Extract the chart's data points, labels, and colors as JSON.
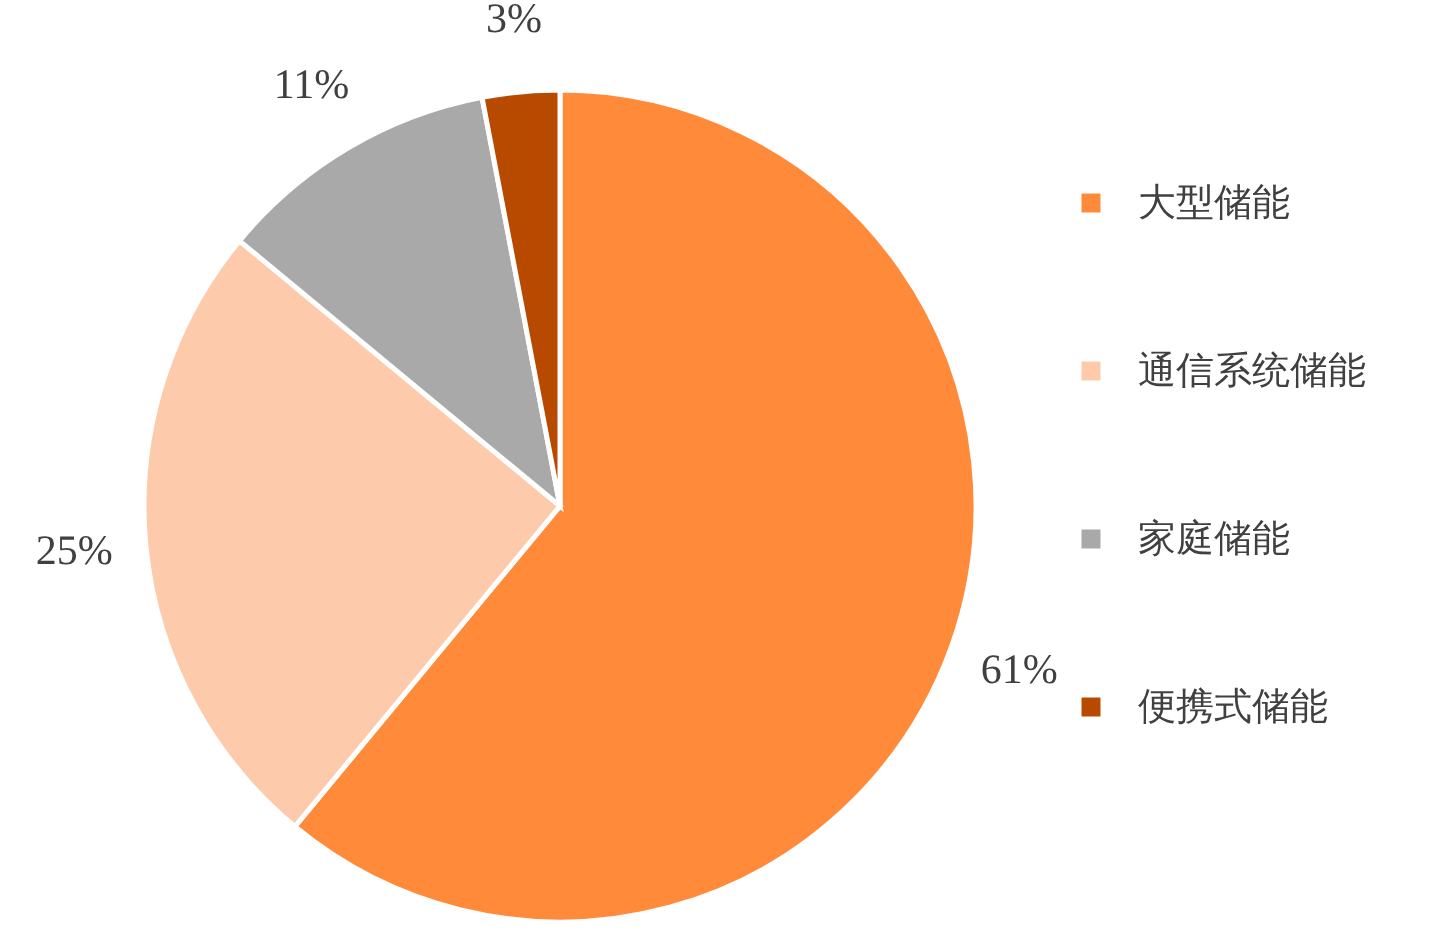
{
  "chart_data": {
    "type": "pie",
    "categories": [
      "大型储能",
      "通信系统储能",
      "家庭储能",
      "便携式储能"
    ],
    "values": [
      61,
      25,
      11,
      3
    ],
    "colors": [
      "#ff8a3a",
      "#fdcbab",
      "#a9a9a9",
      "#b84a00"
    ],
    "value_labels": [
      "61%",
      "25%",
      "11%",
      "3%"
    ],
    "legend": "right"
  }
}
